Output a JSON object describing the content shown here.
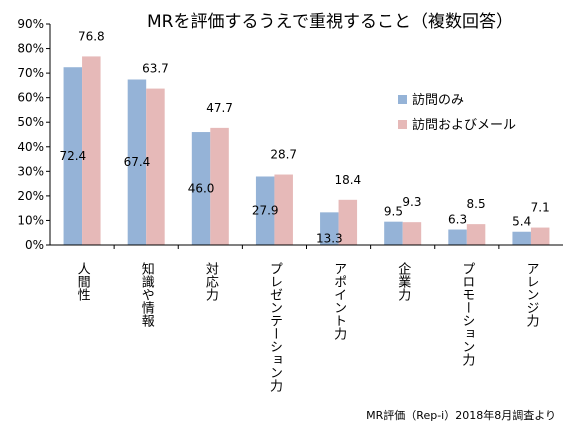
{
  "chart_data": {
    "type": "bar",
    "title": "MRを評価するうえで重視すること（複数回答）",
    "categories": [
      "人間性",
      "知識や情報",
      "対応力",
      "プレゼンテーション力",
      "アポイント力",
      "企業力",
      "プロモーション力",
      "アレンジ力"
    ],
    "series": [
      {
        "name": "訪問のみ",
        "color": "#95b3d7",
        "values": [
          72.4,
          67.4,
          46.0,
          27.9,
          13.3,
          9.5,
          6.3,
          5.4
        ]
      },
      {
        "name": "訪問およびメール",
        "color": "#e6b9b8",
        "values": [
          76.8,
          63.7,
          47.7,
          28.7,
          18.4,
          9.3,
          8.5,
          7.1
        ]
      }
    ],
    "ylim": [
      0,
      90
    ],
    "y_ticks": [
      "0%",
      "10%",
      "20%",
      "30%",
      "40%",
      "50%",
      "60%",
      "70%",
      "80%",
      "90%"
    ],
    "data_labels": [
      [
        "72.4",
        "67.4",
        "46.0",
        "27.9",
        "13.3",
        "9.5",
        "6.3",
        "5.4"
      ],
      [
        "76.8",
        "63.7",
        "47.7",
        "28.7",
        "18.4",
        "9.3",
        "8.5",
        "7.1"
      ]
    ],
    "grid": false,
    "legend_position": "right",
    "xlabel": "",
    "ylabel": "",
    "source": "MR評価（Rep-i）2018年8月調査より"
  }
}
